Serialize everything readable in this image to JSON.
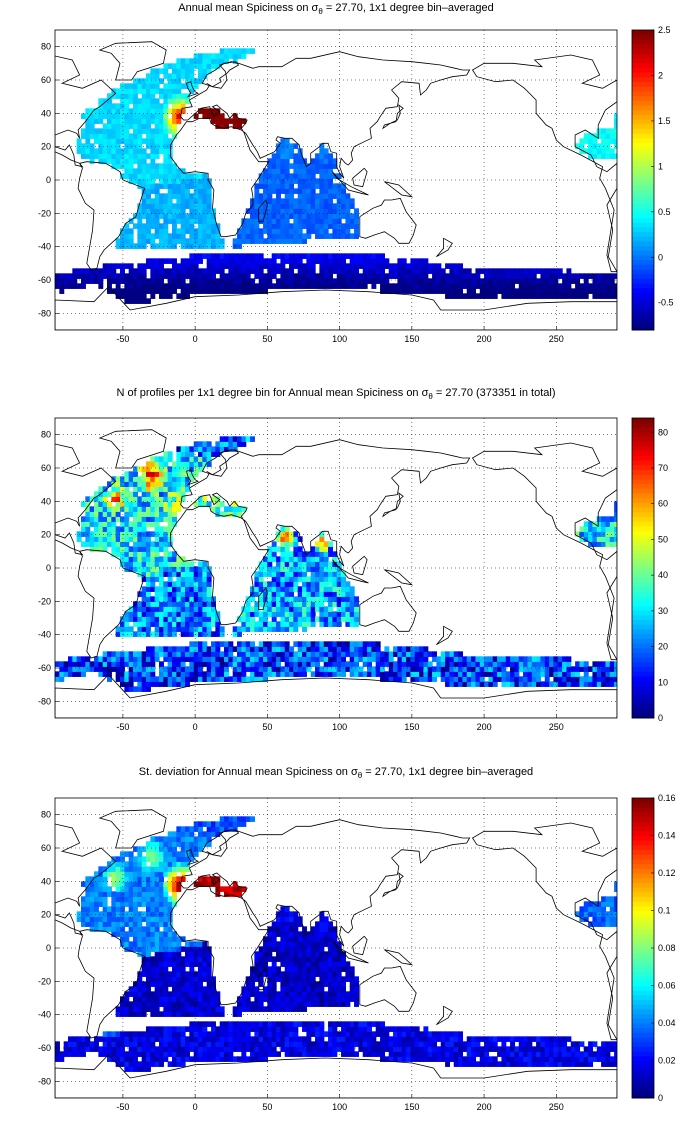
{
  "panels": [
    {
      "title_prefix": "Annual mean Spiciness on ",
      "sigma": "σ",
      "sigma_sub": "θ",
      "title_suffix": " = 27.70, 1x1 degree bin–averaged",
      "colorbar": {
        "min": -0.8,
        "max": 2.5,
        "ticks": [
          "2.5",
          "2",
          "1.5",
          "1",
          "0.5",
          "0",
          "-0.5"
        ],
        "tick_values": [
          2.5,
          2,
          1.5,
          1,
          0.5,
          0,
          -0.5
        ]
      },
      "field": "spiciness"
    },
    {
      "title_prefix": "N of profiles per 1x1 degree bin for Annual mean Spiciness on ",
      "sigma": "σ",
      "sigma_sub": "θ",
      "title_suffix": " = 27.70 (373351 in total)",
      "colorbar": {
        "min": 0,
        "max": 84,
        "ticks": [
          "80",
          "70",
          "60",
          "50",
          "40",
          "30",
          "20",
          "10",
          "0"
        ],
        "tick_values": [
          80,
          70,
          60,
          50,
          40,
          30,
          20,
          10,
          0
        ]
      },
      "field": "count"
    },
    {
      "title_prefix": "St. deviation for Annual mean Spiciness on ",
      "sigma": "σ",
      "sigma_sub": "θ",
      "title_suffix": " = 27.70, 1x1 degree bin–averaged",
      "colorbar": {
        "min": 0,
        "max": 0.16,
        "ticks": [
          "0.16",
          "0.14",
          "0.12",
          "0.1",
          "0.08",
          "0.06",
          "0.04",
          "0.02",
          "0"
        ],
        "tick_values": [
          0.16,
          0.14,
          0.12,
          0.1,
          0.08,
          0.06,
          0.04,
          0.02,
          0
        ]
      },
      "field": "stdev"
    }
  ],
  "axes": {
    "xlim": [
      -97,
      292
    ],
    "ylim": [
      -90,
      90
    ],
    "xticks": [
      "-50",
      "0",
      "50",
      "100",
      "150",
      "200",
      "250"
    ],
    "xtick_values": [
      -50,
      0,
      50,
      100,
      150,
      200,
      250
    ],
    "yticks": [
      "80",
      "60",
      "40",
      "20",
      "0",
      "-20",
      "-40",
      "-60",
      "-80"
    ],
    "ytick_values": [
      80,
      60,
      40,
      20,
      0,
      -20,
      -40,
      -60,
      -80
    ],
    "grid": "dotted"
  }
}
